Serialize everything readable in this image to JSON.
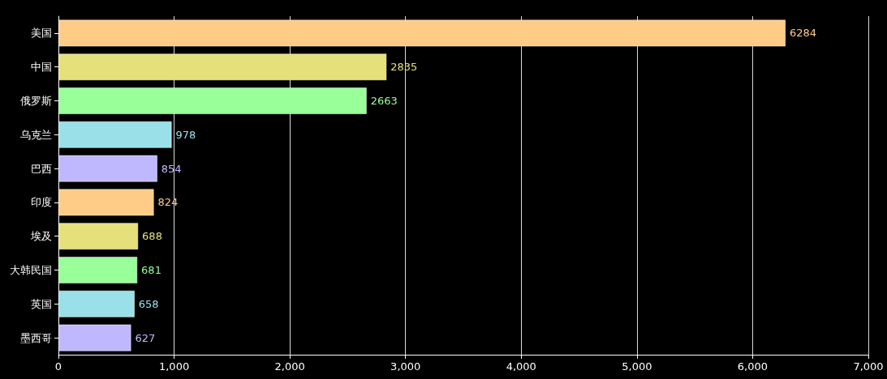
{
  "chart_data": {
    "type": "bar",
    "orientation": "horizontal",
    "categories": [
      "美国",
      "中国",
      "俄罗斯",
      "乌克兰",
      "巴西",
      "印度",
      "埃及",
      "大韩民国",
      "英国",
      "墨西哥"
    ],
    "values": [
      6284,
      2835,
      2663,
      978,
      854,
      824,
      688,
      681,
      658,
      627
    ],
    "colors": [
      "#ffcc88",
      "#e6e07a",
      "#99ff99",
      "#99e0e8",
      "#c0b8ff",
      "#ffcc88",
      "#e6e07a",
      "#99ff99",
      "#99e0e8",
      "#c0b8ff"
    ],
    "xlim": [
      0,
      7000
    ],
    "xticks": [
      0,
      {
        "value": 1000,
        "label": "1,000"
      },
      {
        "value": 2000,
        "label": "2,000"
      },
      {
        "value": 3000,
        "label": "3,000"
      },
      {
        "value": 4000,
        "label": "4,000"
      },
      {
        "value": 5000,
        "label": "5,000"
      },
      {
        "value": 6000,
        "label": "6,000"
      },
      {
        "value": 7000,
        "label": "7,000"
      }
    ],
    "grid": "x",
    "data_labels": true
  }
}
